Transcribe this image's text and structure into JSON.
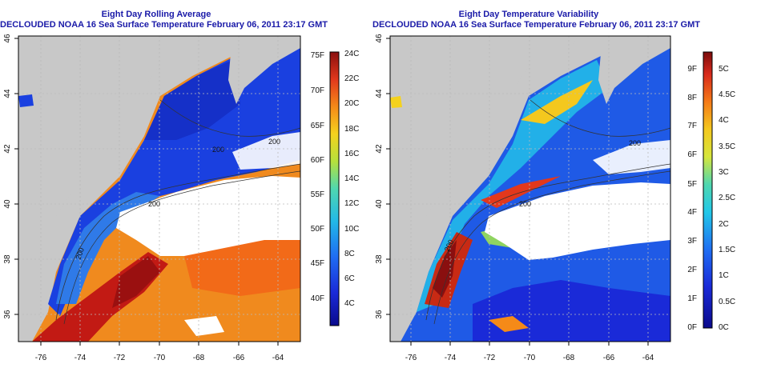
{
  "left_map": {
    "title": "Eight Day Rolling Average",
    "subtitle": "DECLOUDED NOAA 16 Sea Surface Temperature February 06, 2011 23:17 GMT",
    "lon_ticks": [
      "-76",
      "-74",
      "-72",
      "-70",
      "-68",
      "-66",
      "-64"
    ],
    "lat_ticks": [
      "46",
      "44",
      "42",
      "40",
      "38",
      "36"
    ],
    "contour_labels": [
      "200",
      "200",
      "200",
      "200"
    ],
    "colorbar": {
      "fahrenheit_labels": [
        "75F",
        "70F",
        "65F",
        "60F",
        "55F",
        "50F",
        "45F",
        "40F"
      ],
      "celsius_labels": [
        "24C",
        "22C",
        "20C",
        "18C",
        "16C",
        "14C",
        "12C",
        "10C",
        "8C",
        "6C",
        "4C"
      ]
    }
  },
  "right_map": {
    "title": "Eight Day Temperature Variability",
    "subtitle": "DECLOUDED NOAA 16 Sea Surface Temperature February 06, 2011 23:17 GMT",
    "lon_ticks": [
      "-76",
      "-74",
      "-72",
      "-70",
      "-68",
      "-66",
      "-64"
    ],
    "lat_ticks": [
      "46",
      "44",
      "42",
      "40",
      "38",
      "36"
    ],
    "contour_labels": [
      "200",
      "200",
      "200"
    ],
    "colorbar": {
      "fahrenheit_labels": [
        "9F",
        "8F",
        "7F",
        "6F",
        "5F",
        "4F",
        "3F",
        "2F",
        "1F",
        "0F"
      ],
      "celsius_labels": [
        "5C",
        "4.5C",
        "4C",
        "3.5C",
        "3C",
        "2.5C",
        "2C",
        "1.5C",
        "1C",
        "0.5C",
        "0C"
      ]
    }
  },
  "colors": {
    "title": "#1a1aa8",
    "land": "#c8c8c8",
    "cloud": "#ffffff",
    "grid": "#bbbbbb"
  }
}
